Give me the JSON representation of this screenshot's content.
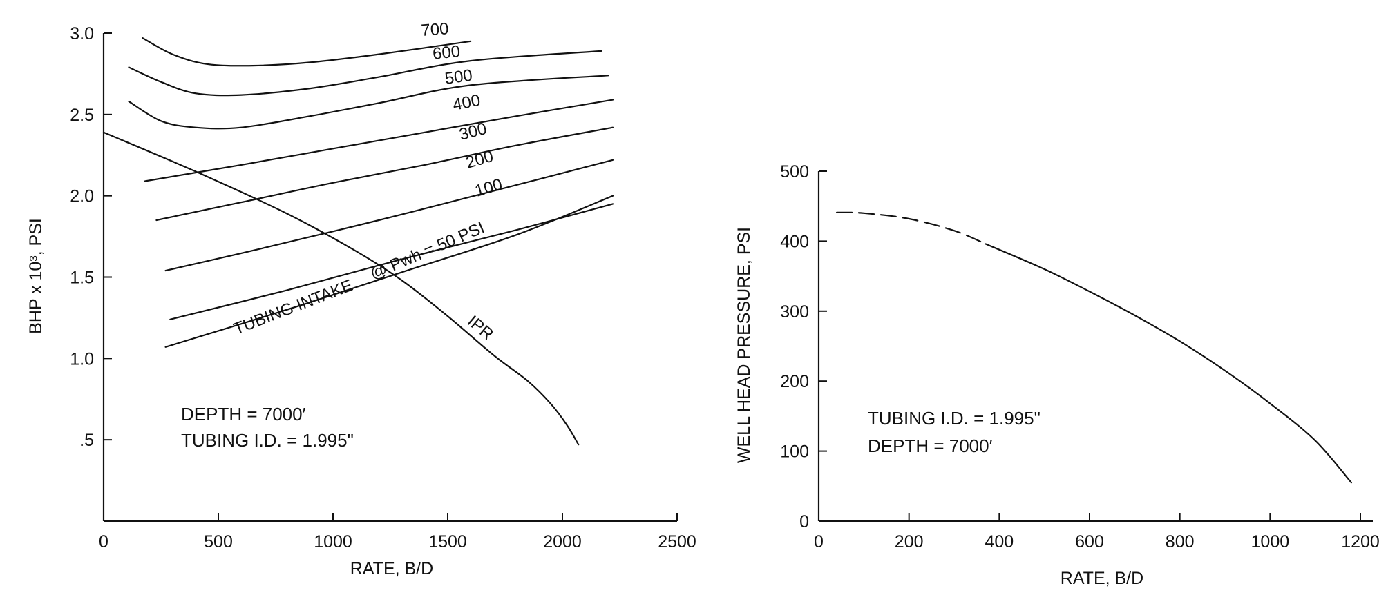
{
  "chart_data": [
    {
      "type": "line",
      "title": "",
      "xlabel": "RATE, B/D",
      "ylabel": "BHP x 10³, PSI",
      "xlim": [
        0,
        2500
      ],
      "ylim": [
        0,
        3.0
      ],
      "xticks": [
        "0",
        "500",
        "1000",
        "1500",
        "2000",
        "2500"
      ],
      "yticks": [
        {
          "v": 0.5,
          "label": ".5"
        },
        {
          "v": 1.0,
          "label": "1.0"
        },
        {
          "v": 1.5,
          "label": "1.5"
        },
        {
          "v": 2.0,
          "label": "2.0"
        },
        {
          "v": 2.5,
          "label": "2.5"
        },
        {
          "v": 3.0,
          "label": "3.0"
        }
      ],
      "series": [
        {
          "name": "700",
          "points": [
            [
              170,
              2.97
            ],
            [
              300,
              2.87
            ],
            [
              450,
              2.81
            ],
            [
              650,
              2.8
            ],
            [
              900,
              2.82
            ],
            [
              1200,
              2.87
            ],
            [
              1600,
              2.95
            ]
          ]
        },
        {
          "name": "600",
          "points": [
            [
              110,
              2.79
            ],
            [
              250,
              2.7
            ],
            [
              400,
              2.63
            ],
            [
              600,
              2.62
            ],
            [
              900,
              2.66
            ],
            [
              1200,
              2.73
            ],
            [
              1600,
              2.83
            ],
            [
              2170,
              2.89
            ]
          ]
        },
        {
          "name": "500",
          "points": [
            [
              110,
              2.58
            ],
            [
              250,
              2.46
            ],
            [
              400,
              2.42
            ],
            [
              600,
              2.42
            ],
            [
              900,
              2.49
            ],
            [
              1200,
              2.57
            ],
            [
              1600,
              2.68
            ],
            [
              2200,
              2.74
            ]
          ]
        },
        {
          "name": "400",
          "points": [
            [
              180,
              2.09
            ],
            [
              600,
              2.19
            ],
            [
              1000,
              2.29
            ],
            [
              1400,
              2.39
            ],
            [
              1800,
              2.49
            ],
            [
              2220,
              2.59
            ]
          ]
        },
        {
          "name": "300",
          "points": [
            [
              230,
              1.85
            ],
            [
              600,
              1.96
            ],
            [
              1000,
              2.08
            ],
            [
              1400,
              2.19
            ],
            [
              1800,
              2.31
            ],
            [
              2220,
              2.42
            ]
          ]
        },
        {
          "name": "200",
          "points": [
            [
              270,
              1.54
            ],
            [
              700,
              1.68
            ],
            [
              1200,
              1.85
            ],
            [
              1700,
              2.03
            ],
            [
              2220,
              2.22
            ]
          ]
        },
        {
          "name": "100",
          "points": [
            [
              290,
              1.24
            ],
            [
              800,
              1.42
            ],
            [
              1300,
              1.61
            ],
            [
              1800,
              1.79
            ],
            [
              2220,
              1.95
            ]
          ]
        },
        {
          "name": "@ Pwh = 50 PSI",
          "points": [
            [
              270,
              1.07
            ],
            [
              800,
              1.3
            ],
            [
              1300,
              1.53
            ],
            [
              1800,
              1.76
            ],
            [
              2220,
              2.0
            ]
          ]
        },
        {
          "name": "IPR",
          "points": [
            [
              0,
              2.39
            ],
            [
              400,
              2.15
            ],
            [
              800,
              1.89
            ],
            [
              1100,
              1.66
            ],
            [
              1300,
              1.48
            ],
            [
              1500,
              1.26
            ],
            [
              1700,
              1.02
            ],
            [
              1850,
              0.86
            ],
            [
              1950,
              0.72
            ],
            [
              2020,
              0.59
            ],
            [
              2070,
              0.47
            ]
          ]
        }
      ],
      "curve_labels": [
        "700",
        "600",
        "500",
        "400",
        "300",
        "200",
        "100",
        "@ Pwh = 50 PSI",
        "TUBING INTAKE",
        "IPR"
      ],
      "annotation_lines": [
        "DEPTH = 7000′",
        "TUBING I.D. = 1.995\""
      ]
    },
    {
      "type": "line",
      "title": "",
      "xlabel": "RATE, B/D",
      "ylabel": "WELL HEAD PRESSURE, PSI",
      "xlim": [
        0,
        1200
      ],
      "ylim": [
        0,
        500
      ],
      "xticks": [
        "0",
        "200",
        "400",
        "600",
        "800",
        "1000",
        "1200"
      ],
      "yticks": [
        {
          "v": 0,
          "label": "0"
        },
        {
          "v": 100,
          "label": "100"
        },
        {
          "v": 200,
          "label": "200"
        },
        {
          "v": 300,
          "label": "300"
        },
        {
          "v": 400,
          "label": "400"
        },
        {
          "v": 500,
          "label": "500"
        }
      ],
      "series": [
        {
          "name": "",
          "dashed": true,
          "points": [
            [
              40,
              441
            ],
            [
              100,
              440
            ],
            [
              200,
              432
            ],
            [
              300,
              415
            ],
            [
              370,
              396
            ]
          ]
        },
        {
          "name": "",
          "dashed": false,
          "points": [
            [
              370,
              396
            ],
            [
              500,
              360
            ],
            [
              600,
              328
            ],
            [
              700,
              294
            ],
            [
              800,
              257
            ],
            [
              900,
              215
            ],
            [
              1000,
              168
            ],
            [
              1100,
              115
            ],
            [
              1180,
              55
            ]
          ]
        }
      ],
      "annotation_lines": [
        "TUBING I.D. = 1.995\"",
        "DEPTH = 7000′"
      ]
    }
  ]
}
